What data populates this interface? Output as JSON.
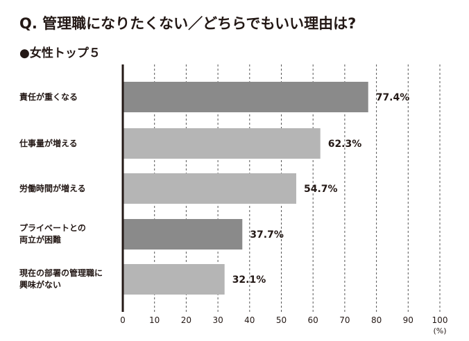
{
  "chart_data": {
    "type": "bar",
    "orientation": "horizontal",
    "title": "Q. 管理職になりたくない／どちらでもいい理由は?",
    "subtitle": "●女性トップ５",
    "categories": [
      [
        "責任が重くなる"
      ],
      [
        "仕事量が増える"
      ],
      [
        "労働時間が増える"
      ],
      [
        "プライベートとの",
        "両立が困難"
      ],
      [
        "現在の部署の管理職に",
        "興味がない"
      ]
    ],
    "values": [
      77.4,
      62.3,
      54.7,
      37.7,
      32.1
    ],
    "value_labels": [
      "77.4%",
      "62.3%",
      "54.7%",
      "37.7%",
      "32.1%"
    ],
    "bar_colors": [
      "#8a8a8a",
      "#b5b5b5",
      "#b5b5b5",
      "#8a8a8a",
      "#b5b5b5"
    ],
    "xlim": [
      0,
      100
    ],
    "xticks": [
      0,
      10,
      20,
      30,
      40,
      50,
      60,
      70,
      80,
      90,
      100
    ],
    "xtick_labels": [
      "0",
      "10",
      "20",
      "30",
      "40",
      "50",
      "60",
      "70",
      "80",
      "90",
      "100"
    ],
    "xunit": "(%)",
    "grid": true
  }
}
